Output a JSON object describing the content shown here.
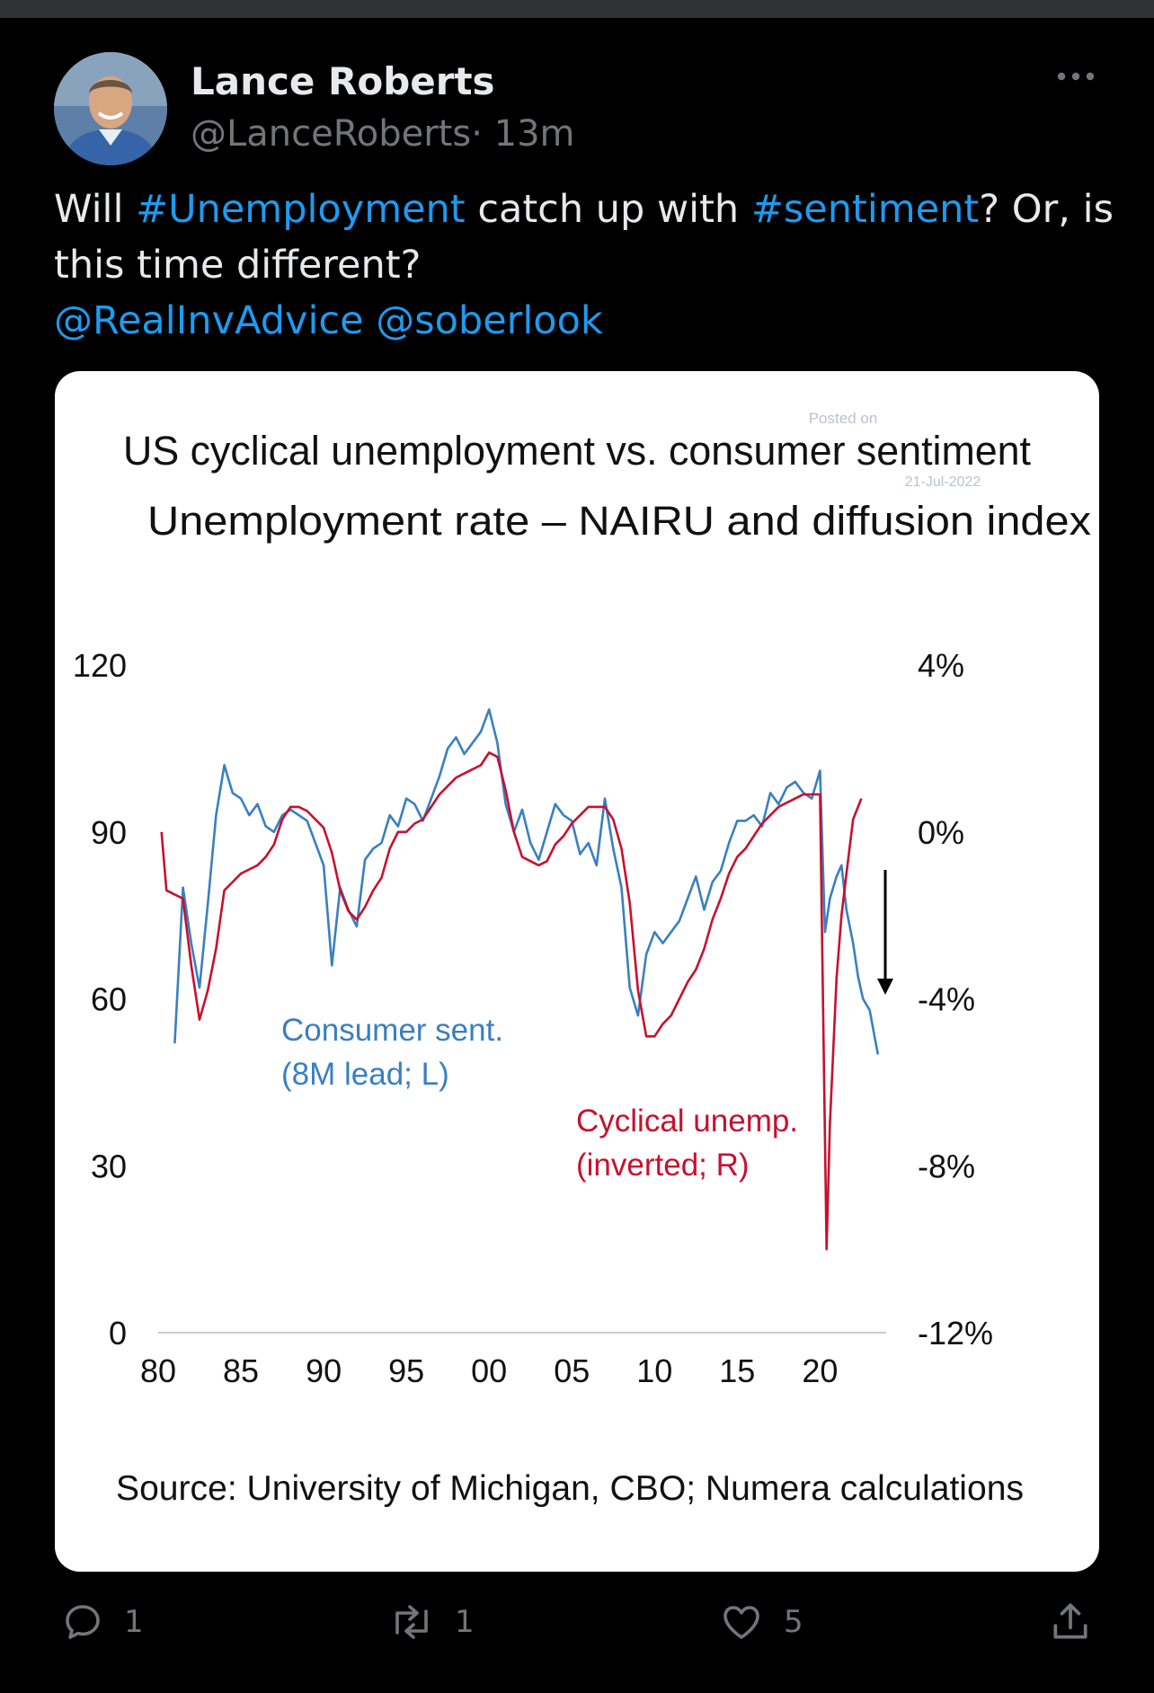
{
  "tweet": {
    "author_name": "Lance Roberts",
    "author_handle": "@LanceRoberts",
    "separator": "·",
    "time": "13m",
    "text_parts": [
      "Will ",
      "#Unemployment",
      " catch up with ",
      "#sentiment",
      "? Or, is this time different?"
    ],
    "mentions": [
      "@RealInvAdvice",
      "@soberlook"
    ]
  },
  "actions": {
    "reply_count": "1",
    "retweet_count": "1",
    "like_count": "5"
  },
  "icons": {
    "more": "more-horizontal-icon",
    "reply": "reply-icon",
    "retweet": "retweet-icon",
    "like": "heart-icon",
    "share": "share-icon"
  },
  "colors": {
    "background": "#000000",
    "link": "#1d9bf0",
    "muted": "#71767b",
    "sentiment_line": "#3a7fc1",
    "unemployment_line": "#c8102e"
  },
  "chart_data": {
    "type": "line",
    "title": "US cyclical unemployment vs. consumer sentiment",
    "subtitle": "Unemployment rate – NAIRU and diffusion index",
    "watermark": [
      "Posted on",
      "21-Jul-2022"
    ],
    "x_ticks": [
      "80",
      "85",
      "90",
      "95",
      "00",
      "05",
      "10",
      "15",
      "20"
    ],
    "y_left_ticks": [
      "120",
      "90",
      "60",
      "30",
      "0"
    ],
    "y_right_ticks": [
      "4%",
      "0%",
      "-4%",
      "-8%",
      "-12%"
    ],
    "ylim_left": [
      0,
      120
    ],
    "ylim_right": [
      -12,
      4
    ],
    "xlim": [
      1980,
      2024
    ],
    "annotations": {
      "sentiment_label": [
        "Consumer sent.",
        "(8M lead; L)"
      ],
      "unemployment_label": [
        "Cyclical unemp.",
        "(inverted; R)"
      ],
      "source": "Source: University of Michigan, CBO; Numera calculations"
    },
    "series": [
      {
        "name": "Consumer sent.",
        "axis": "left",
        "x": [
          1981.0,
          1981.5,
          1982.0,
          1982.5,
          1983.0,
          1983.5,
          1984.0,
          1984.5,
          1985.0,
          1985.5,
          1986.0,
          1986.5,
          1987.0,
          1987.5,
          1988.0,
          1988.5,
          1989.0,
          1989.5,
          1990.0,
          1990.5,
          1991.0,
          1991.5,
          1992.0,
          1992.5,
          1993.0,
          1993.5,
          1994.0,
          1994.5,
          1995.0,
          1995.5,
          1996.0,
          1996.5,
          1997.0,
          1997.5,
          1998.0,
          1998.5,
          1999.0,
          1999.5,
          2000.0,
          2000.5,
          2001.0,
          2001.5,
          2002.0,
          2002.5,
          2003.0,
          2003.5,
          2004.0,
          2004.5,
          2005.0,
          2005.5,
          2006.0,
          2006.5,
          2007.0,
          2007.5,
          2008.0,
          2008.5,
          2009.0,
          2009.5,
          2010.0,
          2010.5,
          2011.0,
          2011.5,
          2012.0,
          2012.5,
          2013.0,
          2013.5,
          2014.0,
          2014.5,
          2015.0,
          2015.5,
          2016.0,
          2016.5,
          2017.0,
          2017.5,
          2018.0,
          2018.5,
          2019.0,
          2019.5,
          2020.0,
          2020.3,
          2020.6,
          2021.0,
          2021.3,
          2021.6,
          2022.0,
          2022.3,
          2022.6,
          2023.0,
          2023.5
        ],
        "values": [
          52,
          80,
          70,
          62,
          77,
          93,
          102,
          97,
          96,
          93,
          95,
          91,
          90,
          93,
          94,
          93,
          92,
          88,
          84,
          66,
          80,
          76,
          73,
          85,
          87,
          88,
          93,
          91,
          96,
          95,
          92,
          96,
          100,
          105,
          107,
          104,
          106,
          108,
          112,
          106,
          95,
          90,
          94,
          88,
          85,
          90,
          95,
          93,
          92,
          86,
          88,
          84,
          96,
          87,
          80,
          62,
          57,
          68,
          72,
          70,
          72,
          74,
          78,
          82,
          76,
          81,
          83,
          88,
          92,
          92,
          93,
          91,
          97,
          95,
          98,
          99,
          97,
          96,
          101,
          72,
          78,
          82,
          84,
          76,
          70,
          64,
          60,
          58,
          50
        ]
      },
      {
        "name": "Cyclical unemp.",
        "axis": "right",
        "x": [
          1980.2,
          1980.5,
          1981.0,
          1981.5,
          1982.0,
          1982.5,
          1983.0,
          1983.5,
          1984.0,
          1984.5,
          1985.0,
          1985.5,
          1986.0,
          1986.5,
          1987.0,
          1987.5,
          1988.0,
          1988.5,
          1989.0,
          1989.5,
          1990.0,
          1990.5,
          1991.0,
          1991.5,
          1992.0,
          1992.5,
          1993.0,
          1993.5,
          1994.0,
          1994.5,
          1995.0,
          1995.5,
          1996.0,
          1996.5,
          1997.0,
          1997.5,
          1998.0,
          1998.5,
          1999.0,
          1999.5,
          2000.0,
          2000.5,
          2001.0,
          2001.5,
          2002.0,
          2002.5,
          2003.0,
          2003.5,
          2004.0,
          2004.5,
          2005.0,
          2005.5,
          2006.0,
          2006.5,
          2007.0,
          2007.5,
          2008.0,
          2008.5,
          2009.0,
          2009.5,
          2010.0,
          2010.5,
          2011.0,
          2011.5,
          2012.0,
          2012.5,
          2013.0,
          2013.5,
          2014.0,
          2014.5,
          2015.0,
          2015.5,
          2016.0,
          2016.5,
          2017.0,
          2017.5,
          2018.0,
          2018.5,
          2019.0,
          2019.5,
          2020.0,
          2020.25,
          2020.4,
          2020.6,
          2021.0,
          2021.3,
          2021.6,
          2022.0,
          2022.5
        ],
        "values": [
          0.0,
          -1.4,
          -1.5,
          -1.6,
          -3.2,
          -4.5,
          -3.8,
          -2.8,
          -1.4,
          -1.2,
          -1.0,
          -0.9,
          -0.8,
          -0.6,
          -0.3,
          0.3,
          0.6,
          0.6,
          0.5,
          0.3,
          0.1,
          -0.5,
          -1.4,
          -1.9,
          -2.1,
          -1.8,
          -1.4,
          -1.1,
          -0.4,
          0.0,
          0.0,
          0.2,
          0.3,
          0.6,
          0.9,
          1.1,
          1.3,
          1.4,
          1.5,
          1.6,
          1.9,
          1.8,
          1.0,
          0.0,
          -0.6,
          -0.7,
          -0.8,
          -0.7,
          -0.3,
          -0.1,
          0.2,
          0.4,
          0.6,
          0.6,
          0.6,
          0.3,
          -0.4,
          -1.7,
          -3.8,
          -4.9,
          -4.9,
          -4.6,
          -4.4,
          -4.0,
          -3.6,
          -3.3,
          -2.8,
          -2.1,
          -1.6,
          -1.0,
          -0.6,
          -0.4,
          -0.1,
          0.2,
          0.4,
          0.6,
          0.7,
          0.8,
          0.9,
          0.9,
          0.9,
          -6.0,
          -10.0,
          -7.0,
          -3.5,
          -2.0,
          -1.0,
          0.3,
          0.8
        ]
      }
    ]
  }
}
